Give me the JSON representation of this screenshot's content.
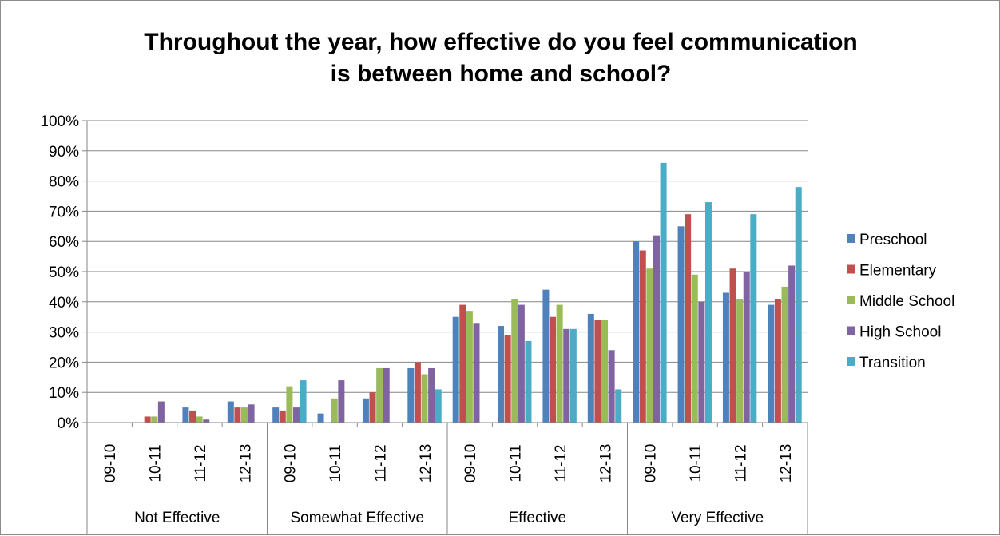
{
  "chart_data": {
    "type": "bar",
    "title": [
      "Throughout the year, how effective do you feel communication",
      "is between home and school?"
    ],
    "groups": [
      "Not Effective",
      "Somewhat Effective",
      "Effective",
      "Very Effective"
    ],
    "subcategories": [
      "09-10",
      "10-11",
      "11-12",
      "12-13"
    ],
    "y_ticks": [
      "0%",
      "10%",
      "20%",
      "30%",
      "40%",
      "50%",
      "60%",
      "70%",
      "80%",
      "90%",
      "100%"
    ],
    "ylim": [
      0,
      100
    ],
    "grid": true,
    "legend_position": "right",
    "series": [
      {
        "name": "Preschool",
        "color": "#4f81bd",
        "values": [
          0,
          0,
          5,
          7,
          5,
          3,
          8,
          18,
          35,
          32,
          44,
          36,
          60,
          65,
          43,
          39
        ]
      },
      {
        "name": "Elementary",
        "color": "#c0504d",
        "values": [
          0,
          2,
          4,
          5,
          4,
          0,
          10,
          20,
          39,
          29,
          35,
          34,
          57,
          69,
          51,
          41
        ]
      },
      {
        "name": "Middle School",
        "color": "#9bbb59",
        "values": [
          0,
          2,
          2,
          5,
          12,
          8,
          18,
          16,
          37,
          41,
          39,
          34,
          51,
          49,
          41,
          45
        ]
      },
      {
        "name": "High School",
        "color": "#8064a2",
        "values": [
          0,
          7,
          1,
          6,
          5,
          14,
          18,
          18,
          33,
          39,
          31,
          24,
          62,
          40,
          50,
          52
        ]
      },
      {
        "name": "Transition",
        "color": "#4bacc6",
        "values": [
          0,
          0,
          0,
          0,
          14,
          0,
          0,
          11,
          0,
          27,
          31,
          11,
          86,
          73,
          69,
          78
        ]
      }
    ]
  }
}
